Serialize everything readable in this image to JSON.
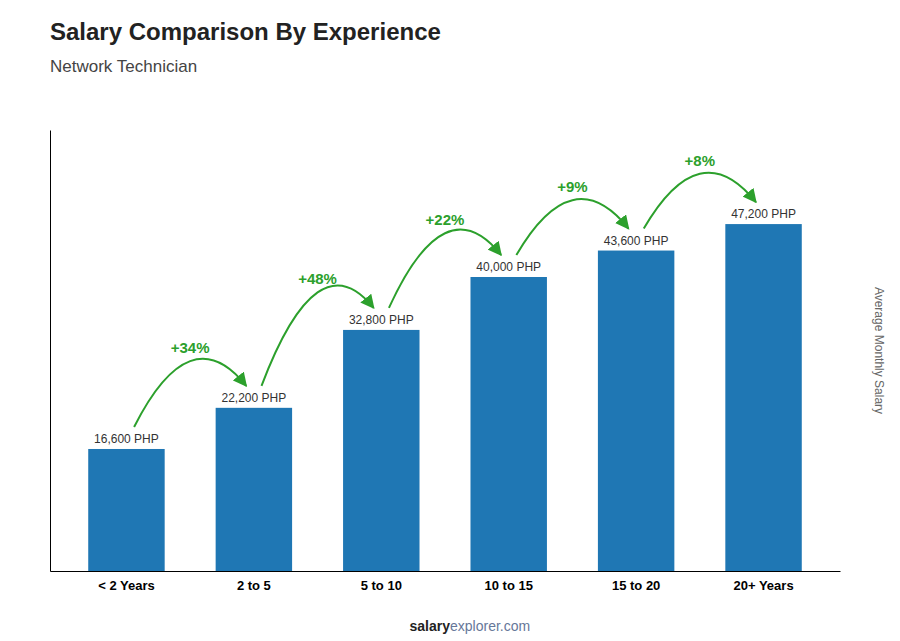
{
  "chart_data": {
    "type": "bar",
    "title": "Salary Comparison By Experience",
    "subtitle": "Network Technician",
    "categories": [
      "< 2 Years",
      "2 to 5",
      "5 to 10",
      "10 to 15",
      "15 to 20",
      "20+ Years"
    ],
    "values": [
      16600,
      22200,
      32800,
      40000,
      43600,
      47200
    ],
    "value_labels": [
      "16,600 PHP",
      "22,200 PHP",
      "32,800 PHP",
      "40,000 PHP",
      "43,600 PHP",
      "47,200 PHP"
    ],
    "data_labels": true,
    "ylabel": "Average Monthly Salary",
    "ylim": [
      0,
      60000
    ],
    "tick_labels": "x",
    "annotations": [
      {
        "text": "+34%",
        "from": "< 2 Years",
        "to": "2 to 5"
      },
      {
        "text": "+48%",
        "from": "2 to 5",
        "to": "5 to 10"
      },
      {
        "text": "+22%",
        "from": "5 to 10",
        "to": "10 to 15"
      },
      {
        "text": "+9%",
        "from": "10 to 15",
        "to": "15 to 20"
      },
      {
        "text": "+8%",
        "from": "15 to 20",
        "to": "20+ Years"
      }
    ],
    "footer": [
      "salary",
      "explorer.com"
    ]
  }
}
